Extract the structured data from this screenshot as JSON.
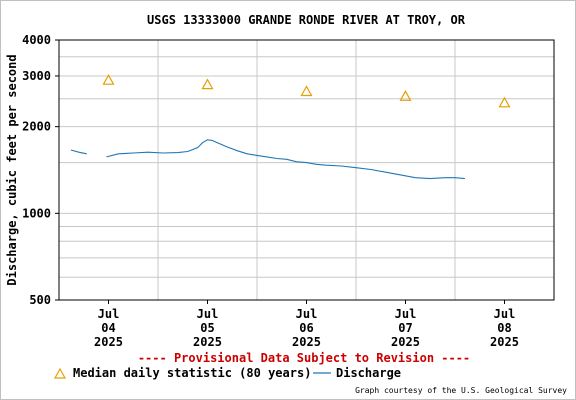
{
  "chart_data": {
    "type": "line",
    "title": "USGS 13333000 GRANDE RONDE RIVER AT TROY, OR",
    "ylabel": "Discharge, cubic feet per second",
    "xlabel": "",
    "yscale": "log",
    "ylim": [
      500,
      4000
    ],
    "y_ticks": [
      500,
      1000,
      2000,
      3000,
      4000
    ],
    "y_minor_ticks": [
      600,
      700,
      800,
      900,
      1500,
      2500,
      3500
    ],
    "xlim": [
      -0.5,
      4.5
    ],
    "x_ticks": [
      {
        "x": 0,
        "line1": "Jul",
        "line2": "04",
        "line3": "2025"
      },
      {
        "x": 1,
        "line1": "Jul",
        "line2": "05",
        "line3": "2025"
      },
      {
        "x": 2,
        "line1": "Jul",
        "line2": "06",
        "line3": "2025"
      },
      {
        "x": 3,
        "line1": "Jul",
        "line2": "07",
        "line3": "2025"
      },
      {
        "x": 4,
        "line1": "Jul",
        "line2": "08",
        "line3": "2025"
      }
    ],
    "x_grid": [
      0.5,
      1.5,
      2.5,
      3.5
    ],
    "grid": true,
    "series": [
      {
        "name": "Median daily statistic (80 years)",
        "marker": "triangle",
        "color": "#e69f00",
        "x": [
          0,
          1,
          2,
          3,
          4
        ],
        "values": [
          2900,
          2800,
          2650,
          2550,
          2420
        ]
      },
      {
        "name": "Discharge",
        "marker": "line",
        "color": "#1f77b4",
        "segments": [
          {
            "x": [
              -0.38,
              -0.3,
              -0.22
            ],
            "values": [
              1660,
              1630,
              1610
            ]
          },
          {
            "x": [
              -0.02,
              0.1,
              0.25,
              0.4,
              0.55,
              0.7,
              0.8,
              0.9,
              0.95,
              1.0,
              1.05,
              1.1,
              1.2,
              1.3,
              1.4,
              1.5,
              1.6,
              1.7,
              1.8,
              1.9,
              2.0,
              2.1,
              2.2,
              2.35,
              2.5,
              2.65,
              2.8,
              2.95,
              3.1,
              3.25,
              3.4,
              3.5,
              3.6
            ],
            "values": [
              1570,
              1610,
              1620,
              1630,
              1620,
              1625,
              1640,
              1690,
              1760,
              1800,
              1790,
              1760,
              1700,
              1650,
              1610,
              1590,
              1570,
              1550,
              1540,
              1510,
              1500,
              1480,
              1470,
              1460,
              1440,
              1420,
              1390,
              1360,
              1330,
              1320,
              1330,
              1330,
              1320
            ]
          }
        ]
      }
    ],
    "legend": "bottom-left",
    "footer_note": "---- Provisional Data Subject to Revision ----",
    "credit": "Graph courtesy of the U.S. Geological Survey",
    "colors": {
      "grid": "#c8c8c8",
      "axis": "#000000",
      "provisional": "#cc0000"
    }
  }
}
